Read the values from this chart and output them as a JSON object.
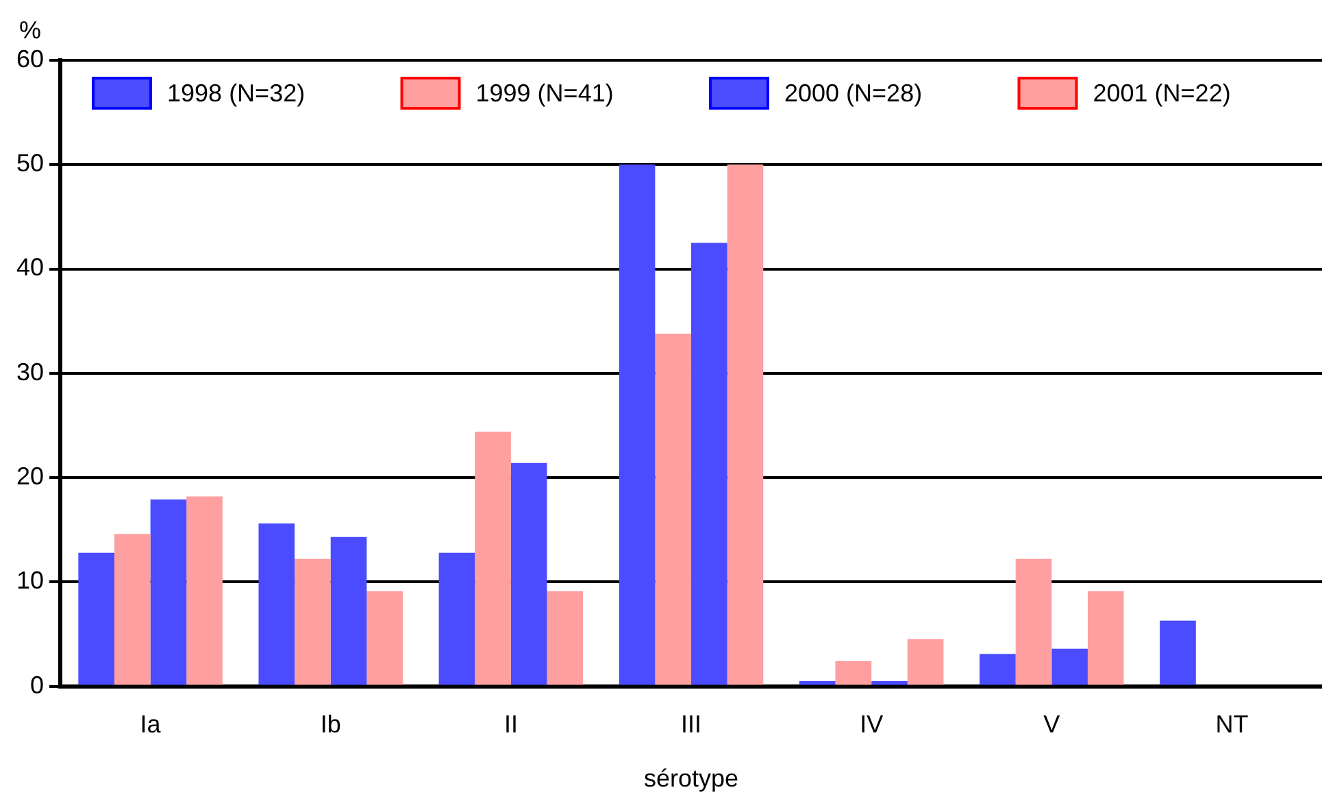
{
  "chart_data": {
    "type": "bar",
    "xlabel": "sérotype",
    "ylabel": "%",
    "categories": [
      "Ia",
      "Ib",
      "II",
      "III",
      "IV",
      "V",
      "NT"
    ],
    "series": [
      {
        "name": "1998 (N=32)",
        "color": "#4b4bff",
        "values": [
          12.8,
          15.6,
          12.8,
          50,
          0.5,
          3.1,
          6.3
        ]
      },
      {
        "name": "1999 (N=41)",
        "color": "#ff9f9f",
        "values": [
          14.6,
          12.2,
          24.4,
          33.8,
          2.4,
          12.2,
          null
        ]
      },
      {
        "name": "2000 (N=28)",
        "color": "#4b4bff",
        "values": [
          17.9,
          14.3,
          21.4,
          42.5,
          0.5,
          3.6,
          null
        ]
      },
      {
        "name": "2001 (N=22)",
        "color": "#ff9f9f",
        "values": [
          18.2,
          9.1,
          9.1,
          50,
          4.5,
          9.1,
          null
        ]
      }
    ],
    "ylim": [
      0,
      60
    ],
    "yticks": [
      0,
      10,
      20,
      30,
      40,
      50,
      60
    ],
    "grid": "y",
    "legend": "top"
  }
}
